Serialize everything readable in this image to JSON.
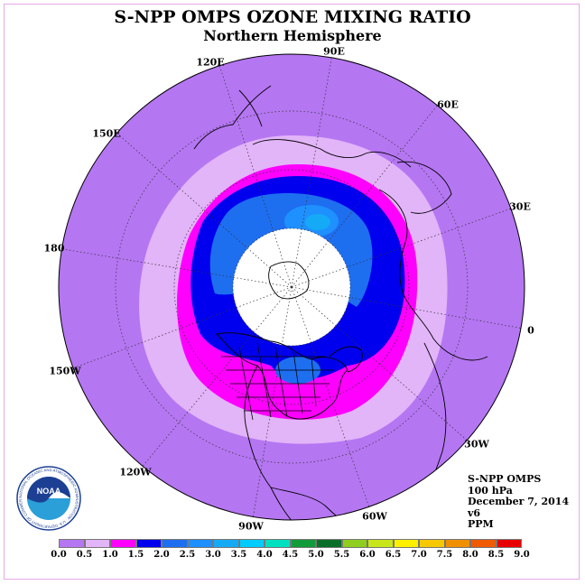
{
  "title": "S-NPP OMPS OZONE MIXING RATIO",
  "subtitle": "Northern Hemisphere",
  "longitude_labels": [
    {
      "id": "90E",
      "text": "90E"
    },
    {
      "id": "120E",
      "text": "120E"
    },
    {
      "id": "60E",
      "text": "60E"
    },
    {
      "id": "150E",
      "text": "150E"
    },
    {
      "id": "30E",
      "text": "30E"
    },
    {
      "id": "180",
      "text": "180"
    },
    {
      "id": "0",
      "text": "0"
    },
    {
      "id": "150W",
      "text": "150W"
    },
    {
      "id": "30W",
      "text": "30W"
    },
    {
      "id": "120W",
      "text": "120W"
    },
    {
      "id": "60W",
      "text": "60W"
    },
    {
      "id": "90W",
      "text": "90W"
    }
  ],
  "info": {
    "instrument": "S-NPP OMPS",
    "level": "100 hPa",
    "date": "December 7, 2014",
    "version": "v6",
    "units": "PPM"
  },
  "logo_text": "NOAA",
  "logo_ring_text": "NATIONAL OCEANIC AND ATMOSPHERIC ADMINISTRATION · U.S. DEPARTMENT OF COMMERCE",
  "colorbar": {
    "labels": [
      "0.0",
      "0.5",
      "1.0",
      "1.5",
      "2.0",
      "2.5",
      "3.0",
      "3.5",
      "4.0",
      "4.5",
      "5.0",
      "5.5",
      "6.0",
      "6.5",
      "7.0",
      "7.5",
      "8.0",
      "8.5",
      "9.0"
    ],
    "colors": [
      "#b576f2",
      "#e2b4f8",
      "#ff00ff",
      "#0000ee",
      "#1e6ef0",
      "#1e90ff",
      "#15aaf5",
      "#00ccff",
      "#00e0c0",
      "#129b3a",
      "#0a6e28",
      "#8fce1e",
      "#c8e61a",
      "#fff000",
      "#f5c800",
      "#f09000",
      "#f05a00",
      "#e80000",
      "#8b5a2b"
    ]
  }
}
